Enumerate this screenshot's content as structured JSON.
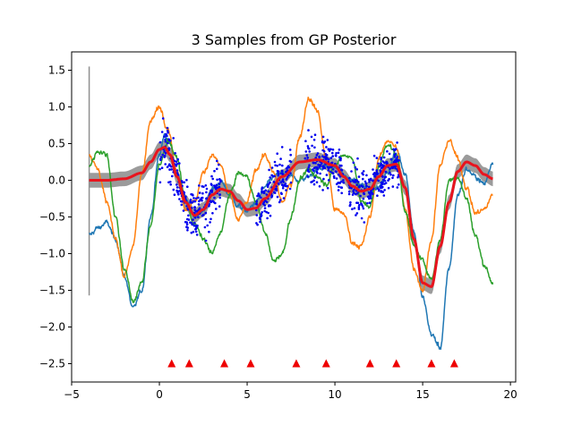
{
  "chart_data": {
    "type": "line",
    "title": "3 Samples from GP Posterior",
    "xlabel": "",
    "ylabel": "",
    "xlim": [
      -5,
      20.3
    ],
    "ylim": [
      -2.75,
      1.75
    ],
    "xticks": [
      -5,
      0,
      5,
      10,
      15,
      20
    ],
    "yticks": [
      -2.5,
      -2.0,
      -1.5,
      -1.0,
      -0.5,
      0.0,
      0.5,
      1.0,
      1.5
    ],
    "xtick_labels": [
      "−5",
      "0",
      "5",
      "10",
      "15",
      "20"
    ],
    "ytick_labels": [
      "−2.5",
      "−2.0",
      "−1.5",
      "−1.0",
      "−0.5",
      "0.0",
      "0.5",
      "1.0",
      "1.5"
    ],
    "grid": false,
    "colors": {
      "sample_1": "#1f77b4",
      "sample_2": "#ff7f0e",
      "sample_3": "#2ca02c",
      "mean": "#e8141e",
      "band": "#909090",
      "scatter": "#0000ee",
      "inducing": "#ee0000"
    },
    "series": [
      {
        "name": "sample_1",
        "x": [
          -4.0,
          -3.5,
          -3.0,
          -2.5,
          -2.0,
          -1.5,
          -1.0,
          -0.5,
          0.0,
          0.3,
          0.6,
          1.0,
          1.5,
          2.0,
          2.5,
          3.0,
          3.5,
          4.0,
          4.5,
          5.0,
          5.5,
          6.0,
          6.5,
          7.0,
          7.5,
          8.0,
          8.5,
          9.0,
          9.5,
          10.0,
          10.5,
          11.0,
          11.5,
          12.0,
          12.5,
          13.0,
          13.5,
          14.0,
          14.5,
          15.0,
          15.5,
          16.0,
          16.5,
          17.0,
          17.5,
          18.0,
          18.5,
          19.0
        ],
        "y": [
          -0.75,
          -0.65,
          -0.58,
          -0.8,
          -1.3,
          -1.75,
          -1.5,
          -0.5,
          0.35,
          0.62,
          0.5,
          0.1,
          -0.25,
          -0.5,
          -0.4,
          -0.12,
          -0.02,
          -0.2,
          -0.35,
          -0.42,
          -0.3,
          -0.1,
          0.05,
          0.1,
          0.05,
          0.0,
          0.05,
          0.15,
          0.2,
          0.18,
          0.05,
          0.0,
          -0.05,
          -0.15,
          -0.1,
          0.1,
          0.42,
          0.1,
          -0.7,
          -1.6,
          -2.1,
          -2.28,
          -1.2,
          -0.2,
          0.15,
          0.05,
          -0.05,
          0.25
        ]
      },
      {
        "name": "sample_2",
        "x": [
          -4.0,
          -3.5,
          -3.0,
          -2.5,
          -2.0,
          -1.5,
          -1.0,
          -0.5,
          0.0,
          0.5,
          1.0,
          1.5,
          2.0,
          2.5,
          3.0,
          3.5,
          4.0,
          4.5,
          5.0,
          5.5,
          6.0,
          6.5,
          7.0,
          7.5,
          8.0,
          8.5,
          9.0,
          9.5,
          10.0,
          10.5,
          11.0,
          11.5,
          12.0,
          12.5,
          13.0,
          13.5,
          14.0,
          14.5,
          15.0,
          15.5,
          16.0,
          16.5,
          17.0,
          17.5,
          18.0,
          18.5,
          19.0
        ],
        "y": [
          0.35,
          0.15,
          -0.3,
          -0.8,
          -1.3,
          -0.9,
          0.1,
          0.8,
          1.0,
          0.7,
          0.1,
          -0.4,
          -0.3,
          0.1,
          0.35,
          0.2,
          -0.2,
          -0.55,
          -0.3,
          0.15,
          0.35,
          0.1,
          -0.3,
          -0.05,
          0.6,
          1.12,
          0.95,
          0.3,
          -0.4,
          -0.45,
          -0.85,
          -0.9,
          -0.5,
          0.3,
          0.55,
          0.45,
          -0.4,
          -1.2,
          -1.5,
          -0.8,
          0.2,
          0.55,
          0.3,
          -0.1,
          -0.45,
          -0.4,
          -0.2
        ]
      },
      {
        "name": "sample_3",
        "x": [
          -4.0,
          -3.5,
          -3.0,
          -2.5,
          -2.0,
          -1.5,
          -1.0,
          -0.5,
          0.0,
          0.5,
          1.0,
          1.5,
          2.0,
          2.5,
          3.0,
          3.5,
          4.0,
          4.5,
          5.0,
          5.5,
          6.0,
          6.5,
          7.0,
          7.5,
          8.0,
          8.5,
          9.0,
          9.5,
          10.0,
          10.5,
          11.0,
          11.5,
          12.0,
          12.5,
          13.0,
          13.5,
          14.0,
          14.5,
          15.0,
          15.5,
          16.0,
          16.5,
          17.0,
          17.5,
          18.0,
          18.5,
          19.0
        ],
        "y": [
          0.2,
          0.4,
          0.35,
          -0.5,
          -1.2,
          -1.65,
          -1.4,
          -0.6,
          0.2,
          0.55,
          0.3,
          -0.3,
          -0.6,
          -0.8,
          -1.0,
          -0.7,
          -0.2,
          0.1,
          0.05,
          -0.3,
          -0.7,
          -1.1,
          -1.0,
          -0.5,
          0.0,
          0.15,
          0.05,
          -0.05,
          0.2,
          0.35,
          0.3,
          -0.3,
          -0.35,
          0.2,
          0.5,
          0.35,
          -0.4,
          -0.9,
          -1.1,
          -1.35,
          -0.8,
          0.0,
          0.05,
          -0.25,
          -0.75,
          -1.15,
          -1.4
        ]
      },
      {
        "name": "mean",
        "x": [
          -4.0,
          -3.0,
          -2.0,
          -1.0,
          -0.5,
          0.0,
          0.3,
          0.6,
          1.0,
          1.5,
          2.0,
          2.5,
          3.0,
          3.5,
          4.0,
          4.5,
          5.0,
          5.5,
          6.0,
          7.0,
          8.0,
          9.0,
          10.0,
          10.5,
          11.0,
          11.5,
          12.0,
          12.5,
          13.0,
          13.5,
          14.0,
          14.5,
          15.0,
          15.5,
          16.0,
          16.5,
          17.0,
          17.5,
          18.0,
          18.5,
          19.0
        ],
        "y": [
          0.0,
          0.0,
          0.02,
          0.1,
          0.25,
          0.42,
          0.45,
          0.35,
          0.05,
          -0.3,
          -0.48,
          -0.4,
          -0.2,
          -0.12,
          -0.15,
          -0.28,
          -0.4,
          -0.38,
          -0.25,
          0.05,
          0.25,
          0.28,
          0.2,
          0.05,
          -0.08,
          -0.15,
          -0.12,
          0.05,
          0.2,
          0.22,
          -0.1,
          -0.8,
          -1.4,
          -1.45,
          -0.9,
          -0.3,
          0.12,
          0.25,
          0.2,
          0.08,
          0.02
        ],
        "band_halfwidth": 0.1
      }
    ],
    "vertical_segment": {
      "x": -4.0,
      "y_top": 1.55,
      "y_bottom": -1.57
    },
    "scatter_x_clusters": [
      [
        0.0,
        2.2
      ],
      [
        2.0,
        3.5
      ],
      [
        5.5,
        7.5
      ],
      [
        8.3,
        10.5
      ],
      [
        10.8,
        12.8
      ],
      [
        12.6,
        13.7
      ]
    ],
    "inducing_points_x": [
      0.7,
      1.7,
      3.7,
      5.2,
      7.8,
      9.5,
      12.0,
      13.5,
      15.5,
      16.8
    ],
    "inducing_points_y": -2.5
  }
}
